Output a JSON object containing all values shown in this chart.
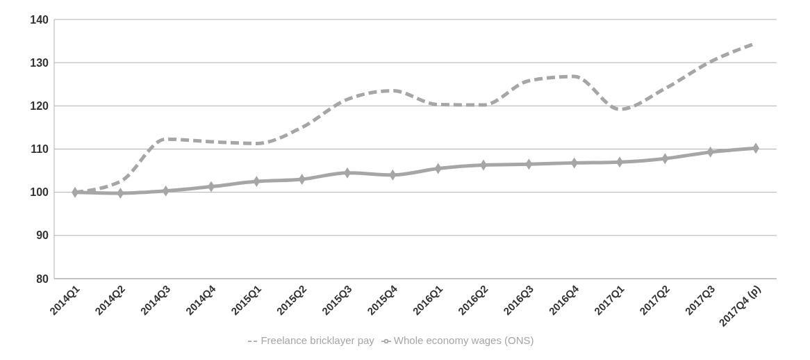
{
  "chart_data": {
    "type": "line",
    "categories": [
      "2014Q1",
      "2014Q2",
      "2014Q3",
      "2014Q4",
      "2015Q1",
      "2015Q2",
      "2015Q3",
      "2015Q4",
      "2016Q1",
      "2016Q2",
      "2016Q3",
      "2016Q4",
      "2017Q1",
      "2017Q2",
      "2017Q3",
      "2017Q4 (p)"
    ],
    "series": [
      {
        "name": "Whole economy wages (ONS)",
        "color": "#a6a6a6",
        "marker": "diamond",
        "line_style": "solid",
        "values": [
          100,
          99.8,
          100.3,
          101.3,
          102.5,
          103,
          104.5,
          104,
          105.5,
          106.3,
          106.5,
          106.8,
          107,
          107.8,
          109.3,
          110.2
        ]
      },
      {
        "name": "Freelance bricklayer pay",
        "color": "#a6a6a6",
        "marker": "none",
        "line_style": "dashed",
        "values": [
          100,
          102.5,
          112.3,
          111.7,
          111.3,
          115,
          121.5,
          123.5,
          120.3,
          120.2,
          125.8,
          126.8,
          119.2,
          124,
          130.2,
          134.5
        ]
      }
    ],
    "ylim": [
      80,
      140
    ],
    "yticks": [
      80,
      90,
      100,
      110,
      120,
      130,
      140
    ],
    "grid": "y",
    "legend": "bottom"
  }
}
